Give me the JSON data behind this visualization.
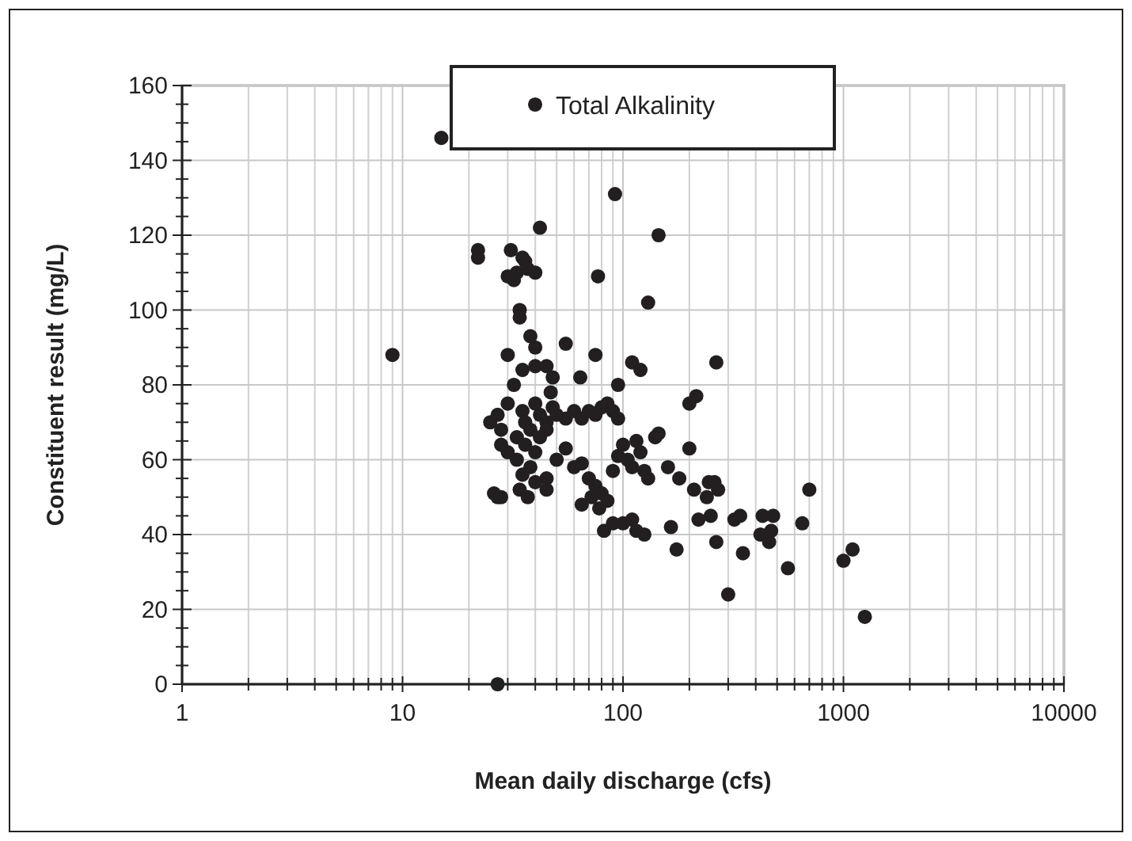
{
  "chart_data": {
    "type": "scatter",
    "xlabel": "Mean daily discharge (cfs)",
    "ylabel": "Constituent result (mg/L)",
    "log": "x",
    "xlim": [
      1,
      10000
    ],
    "xticks": [
      1,
      10,
      100,
      1000,
      10000
    ],
    "ylim": [
      0,
      160
    ],
    "yticks": [
      0,
      20,
      40,
      60,
      80,
      100,
      120,
      140,
      160
    ],
    "grid": true,
    "legend": "top",
    "marker": "circle",
    "series": [
      {
        "name": "Total Alkalinity",
        "color": "#231f20",
        "x": [
          9,
          15,
          22,
          22,
          27,
          26,
          27,
          30,
          31,
          32,
          33,
          35,
          36,
          37,
          40,
          42,
          77,
          92,
          145,
          130,
          38,
          40,
          34,
          34,
          30,
          35,
          40,
          45,
          48,
          47,
          55,
          64,
          75,
          95,
          110,
          120,
          200,
          215,
          265,
          25,
          27,
          28,
          30,
          32,
          33,
          35,
          36,
          38,
          40,
          42,
          45,
          48,
          50,
          55,
          60,
          65,
          70,
          75,
          80,
          85,
          90,
          95,
          28,
          30,
          33,
          36,
          40,
          42,
          45,
          38,
          35,
          40,
          45,
          50,
          55,
          60,
          65,
          70,
          75,
          80,
          85,
          90,
          95,
          100,
          105,
          110,
          115,
          120,
          125,
          130,
          28,
          34,
          37,
          45,
          65,
          72,
          78,
          82,
          90,
          100,
          110,
          115,
          125,
          140,
          145,
          160,
          165,
          180,
          175,
          200,
          210,
          220,
          240,
          245,
          250,
          260,
          270,
          265,
          300,
          320,
          340,
          350,
          420,
          430,
          460,
          470,
          480,
          560,
          650,
          700,
          1000,
          1100,
          1250
        ],
        "values": [
          88,
          146,
          114,
          116,
          0,
          51,
          50,
          109,
          116,
          108,
          110,
          114,
          113,
          111,
          110,
          122,
          109,
          131,
          120,
          102,
          93,
          90,
          100,
          98,
          88,
          84,
          85,
          85,
          82,
          78,
          91,
          82,
          88,
          80,
          86,
          84,
          75,
          77,
          86,
          70,
          72,
          68,
          75,
          80,
          66,
          73,
          70,
          68,
          75,
          72,
          70,
          74,
          72,
          71,
          73,
          71,
          73,
          72,
          74,
          75,
          73,
          71,
          64,
          62,
          60,
          64,
          62,
          66,
          68,
          58,
          56,
          54,
          55,
          60,
          63,
          58,
          59,
          55,
          53,
          51,
          49,
          57,
          61,
          64,
          60,
          58,
          65,
          62,
          57,
          55,
          50,
          52,
          50,
          52,
          48,
          50,
          47,
          41,
          43,
          43,
          44,
          41,
          40,
          66,
          67,
          58,
          42,
          55,
          36,
          63,
          52,
          44,
          50,
          54,
          45,
          54,
          52,
          38,
          24,
          44,
          45,
          35,
          40,
          45,
          38,
          41,
          45,
          31,
          43,
          52,
          33,
          36,
          18
        ]
      }
    ]
  }
}
